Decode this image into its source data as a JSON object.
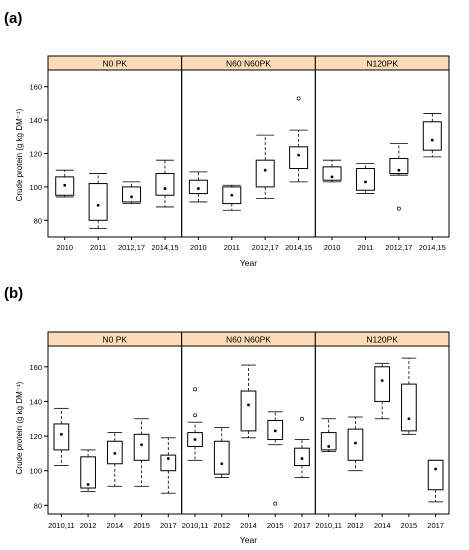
{
  "colors": {
    "strip": "#fcdcb6",
    "frame": "#000000",
    "box": "#000000"
  },
  "chart_data": [
    {
      "panel_label": "(a)",
      "type": "box",
      "ylabel": "Crude protein (g kg DM⁻¹)",
      "xlabel": "Year",
      "ylim": [
        70,
        170
      ],
      "yticks": [
        80,
        100,
        120,
        140,
        160
      ],
      "categories": [
        "2010",
        "2011",
        "2012,17",
        "2014,15"
      ],
      "facets": [
        {
          "name": "N0  PK",
          "stats": [
            {
              "whisker_low": 94,
              "q1": 95,
              "median": 101,
              "q3": 106,
              "whisker_high": 110,
              "mean": 101,
              "outliers": []
            },
            {
              "whisker_low": 75,
              "q1": 80,
              "median": 89,
              "q3": 102,
              "whisker_high": 108,
              "mean": 89,
              "outliers": []
            },
            {
              "whisker_low": 90,
              "q1": 91,
              "median": 94,
              "q3": 100,
              "whisker_high": 103,
              "mean": 94,
              "outliers": []
            },
            {
              "whisker_low": 88,
              "q1": 95,
              "median": 99,
              "q3": 108,
              "whisker_high": 116,
              "mean": 99,
              "outliers": []
            }
          ]
        },
        {
          "name": "N60  N60PK",
          "stats": [
            {
              "whisker_low": 91,
              "q1": 96,
              "median": 100,
              "q3": 104,
              "whisker_high": 109,
              "mean": 99,
              "outliers": []
            },
            {
              "whisker_low": 86,
              "q1": 90,
              "median": 95,
              "q3": 100,
              "whisker_high": 101,
              "mean": 95,
              "outliers": []
            },
            {
              "whisker_low": 93,
              "q1": 100,
              "median": 110,
              "q3": 116,
              "whisker_high": 131,
              "mean": 110,
              "outliers": []
            },
            {
              "whisker_low": 103,
              "q1": 111,
              "median": 119,
              "q3": 124,
              "whisker_high": 134,
              "mean": 119,
              "outliers": [
                153
              ]
            }
          ]
        },
        {
          "name": "N120PK",
          "stats": [
            {
              "whisker_low": 103,
              "q1": 104,
              "median": 106,
              "q3": 112,
              "whisker_high": 116,
              "mean": 106,
              "outliers": []
            },
            {
              "whisker_low": 96,
              "q1": 98,
              "median": 104,
              "q3": 111,
              "whisker_high": 114,
              "mean": 103,
              "outliers": []
            },
            {
              "whisker_low": 107,
              "q1": 108,
              "median": 110,
              "q3": 117,
              "whisker_high": 126,
              "mean": 110,
              "outliers": [
                87
              ]
            },
            {
              "whisker_low": 118,
              "q1": 122,
              "median": 128,
              "q3": 139,
              "whisker_high": 144,
              "mean": 128,
              "outliers": []
            }
          ]
        }
      ]
    },
    {
      "panel_label": "(b)",
      "type": "box",
      "ylabel": "Crude protein (g kg DM⁻¹)",
      "xlabel": "Year",
      "ylim": [
        75,
        172
      ],
      "yticks": [
        80,
        100,
        120,
        140,
        160
      ],
      "categories": [
        "2010,11",
        "2012",
        "2014",
        "2015",
        "2017"
      ],
      "facets": [
        {
          "name": "N0  PK",
          "stats": [
            {
              "whisker_low": 103,
              "q1": 112,
              "median": 121,
              "q3": 127,
              "whisker_high": 136,
              "mean": 121,
              "outliers": []
            },
            {
              "whisker_low": 88,
              "q1": 90,
              "median": 92,
              "q3": 108,
              "whisker_high": 112,
              "mean": 92,
              "outliers": []
            },
            {
              "whisker_low": 91,
              "q1": 104,
              "median": 110,
              "q3": 117,
              "whisker_high": 122,
              "mean": 110,
              "outliers": []
            },
            {
              "whisker_low": 91,
              "q1": 106,
              "median": 115,
              "q3": 121,
              "whisker_high": 130,
              "mean": 115,
              "outliers": []
            },
            {
              "whisker_low": 87,
              "q1": 100,
              "median": 108,
              "q3": 109,
              "whisker_high": 119,
              "mean": 107,
              "outliers": []
            }
          ]
        },
        {
          "name": "N60  N60PK",
          "stats": [
            {
              "whisker_low": 106,
              "q1": 114,
              "median": 118,
              "q3": 122,
              "whisker_high": 128,
              "mean": 118,
              "outliers": [
                147,
                132
              ]
            },
            {
              "whisker_low": 96,
              "q1": 98,
              "median": 104,
              "q3": 117,
              "whisker_high": 125,
              "mean": 104,
              "outliers": []
            },
            {
              "whisker_low": 119,
              "q1": 123,
              "median": 138,
              "q3": 146,
              "whisker_high": 161,
              "mean": 138,
              "outliers": []
            },
            {
              "whisker_low": 115,
              "q1": 118,
              "median": 123,
              "q3": 129,
              "whisker_high": 134,
              "mean": 123,
              "outliers": [
                81
              ]
            },
            {
              "whisker_low": 96,
              "q1": 103,
              "median": 107,
              "q3": 113,
              "whisker_high": 118,
              "mean": 107,
              "outliers": [
                130
              ]
            }
          ]
        },
        {
          "name": "N120PK",
          "stats": [
            {
              "whisker_low": 111,
              "q1": 112,
              "median": 114,
              "q3": 122,
              "whisker_high": 130,
              "mean": 114,
              "outliers": []
            },
            {
              "whisker_low": 100,
              "q1": 106,
              "median": 117,
              "q3": 124,
              "whisker_high": 131,
              "mean": 116,
              "outliers": []
            },
            {
              "whisker_low": 130,
              "q1": 140,
              "median": 152,
              "q3": 160,
              "whisker_high": 162,
              "mean": 152,
              "outliers": []
            },
            {
              "whisker_low": 121,
              "q1": 123,
              "median": 130,
              "q3": 150,
              "whisker_high": 165,
              "mean": 130,
              "outliers": []
            },
            {
              "whisker_low": 82,
              "q1": 89,
              "median": 101,
              "q3": 106,
              "whisker_high": 106,
              "mean": 101,
              "outliers": []
            }
          ]
        }
      ]
    }
  ]
}
